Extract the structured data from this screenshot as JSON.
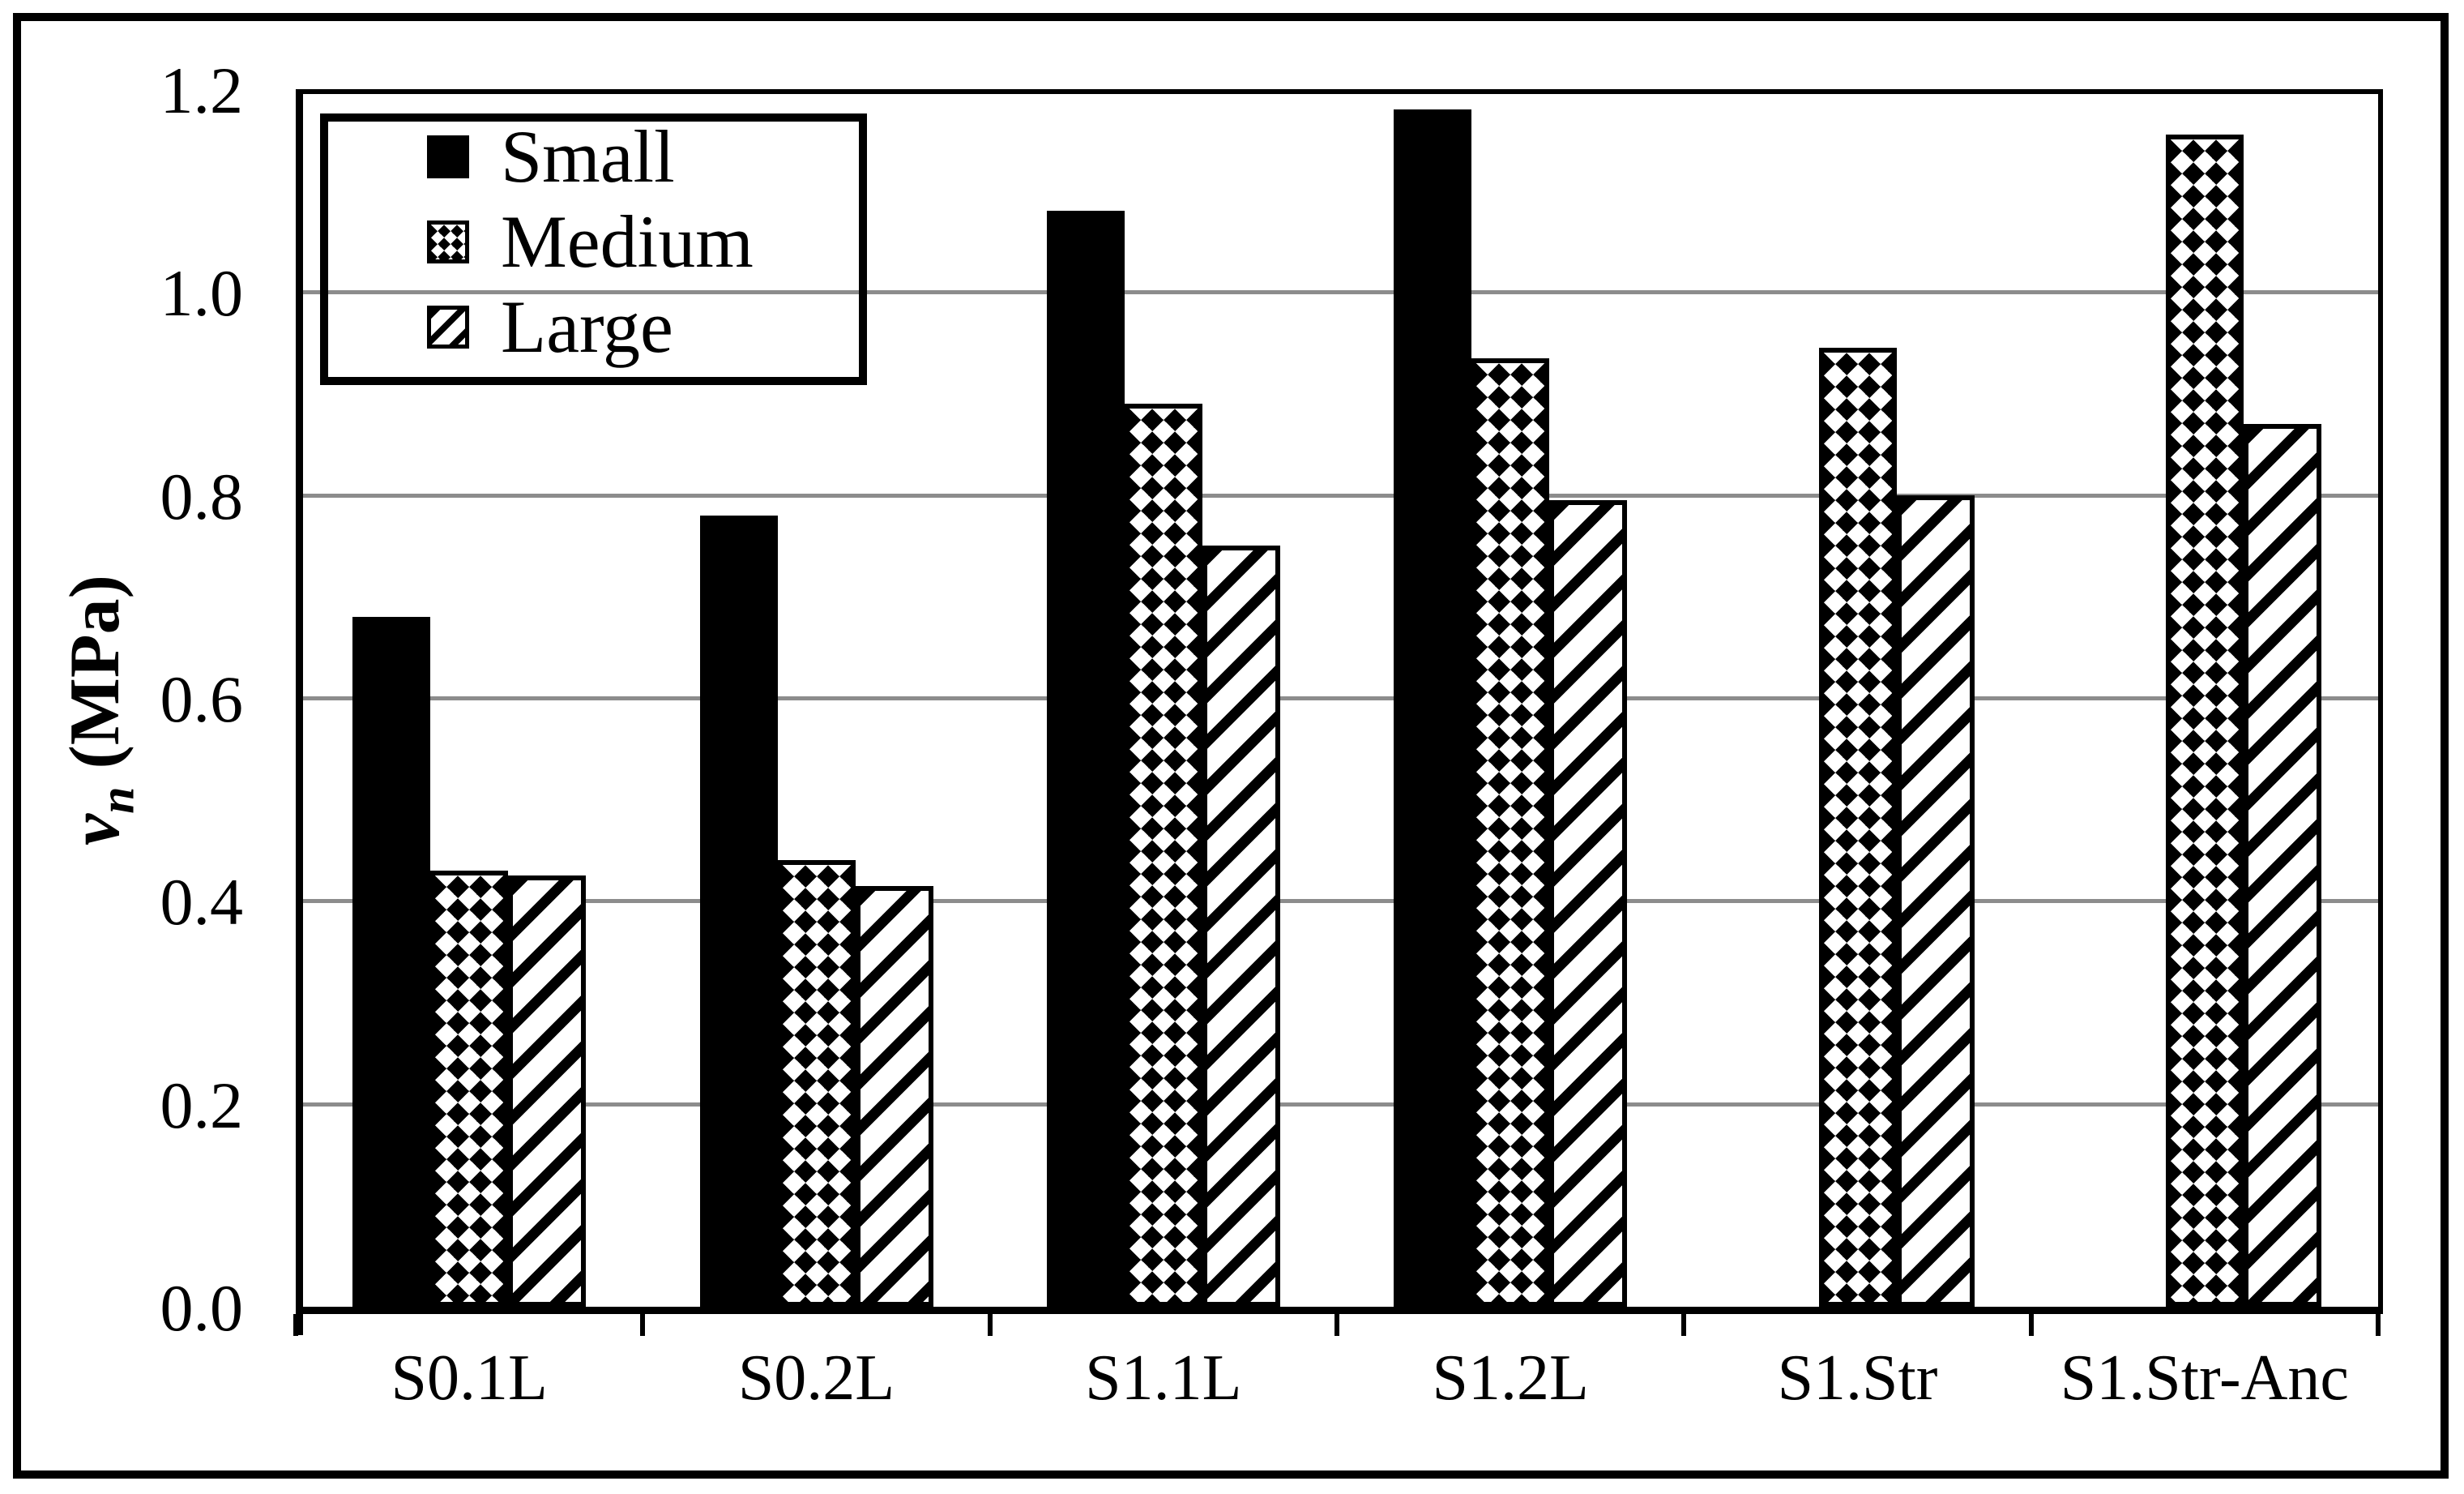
{
  "chart_data": {
    "type": "bar",
    "title": "",
    "categories": [
      "S0.1L",
      "S0.2L",
      "S1.1L",
      "S1.2L",
      "S1.Str",
      "S1.Str-Anc"
    ],
    "series": [
      {
        "name": "Small",
        "pattern": "solid-black",
        "values": [
          0.68,
          0.78,
          1.08,
          1.18,
          null,
          null
        ]
      },
      {
        "name": "Medium",
        "pattern": "diamond-check",
        "values": [
          0.43,
          0.44,
          0.89,
          0.935,
          0.945,
          1.155
        ]
      },
      {
        "name": "Large",
        "pattern": "diagonal-stripe",
        "values": [
          0.425,
          0.415,
          0.75,
          0.795,
          0.8,
          0.87
        ]
      }
    ],
    "xlabel": "",
    "ylabel": {
      "symbol": "v",
      "subscript": "n",
      "unit": "(MPa)"
    },
    "ylim": [
      0.0,
      1.2
    ],
    "ytick_labels": [
      "0.0",
      "0.2",
      "0.4",
      "0.6",
      "0.8",
      "1.0",
      "1.2"
    ],
    "ytick_step": 0.2,
    "grid": "horizontal-gray",
    "legend_position": "top-left",
    "colors": {
      "bar_fill": "#000000",
      "pattern_background": "#ffffff",
      "gridline": "#8c8c8c",
      "axis": "#000000",
      "text": "#000000",
      "figure_background": "#ffffff"
    }
  },
  "legend": {
    "entries": [
      {
        "label": "Small"
      },
      {
        "label": "Medium"
      },
      {
        "label": "Large"
      }
    ]
  }
}
